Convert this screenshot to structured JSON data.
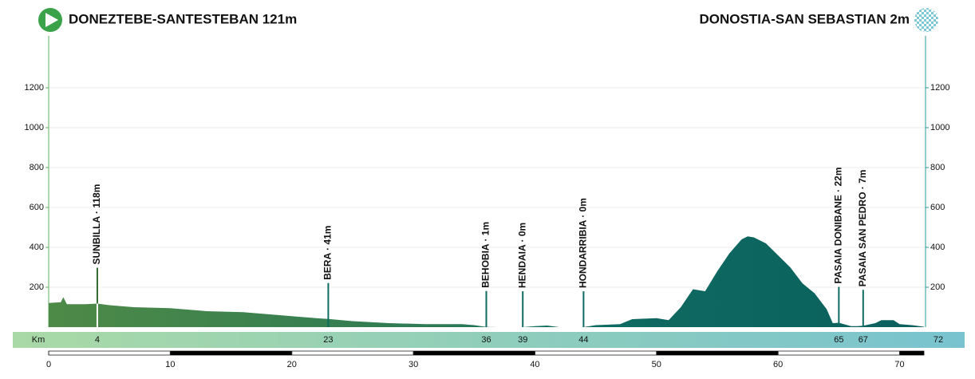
{
  "chart_data": {
    "type": "area",
    "start_title": "DONEZTEBE-SANTESTEBAN 121m",
    "finish_title": "DONOSTIA-SAN SEBASTIAN 2m",
    "x_unit_label": "Km",
    "x": [
      0,
      1,
      1.2,
      1.5,
      3,
      4,
      5,
      7,
      10,
      13,
      16,
      19,
      22,
      23,
      25,
      28,
      31,
      34,
      35,
      36,
      37,
      39,
      40,
      41,
      42,
      44,
      45,
      47,
      48,
      50,
      51,
      52,
      53,
      54,
      55,
      56,
      57,
      57.5,
      58,
      59,
      60,
      61,
      62,
      63,
      64,
      64.5,
      65,
      66,
      66.5,
      67,
      68,
      68.5,
      69.5,
      70,
      71,
      72
    ],
    "values": [
      121,
      125,
      150,
      115,
      115,
      118,
      110,
      100,
      95,
      80,
      75,
      60,
      45,
      41,
      30,
      20,
      15,
      15,
      10,
      1,
      0,
      0,
      5,
      8,
      0,
      0,
      10,
      15,
      40,
      45,
      35,
      100,
      190,
      180,
      280,
      370,
      440,
      455,
      450,
      420,
      360,
      300,
      220,
      170,
      90,
      20,
      22,
      5,
      5,
      7,
      20,
      35,
      35,
      15,
      10,
      2
    ],
    "waypoints": [
      {
        "label": "SUNBILLA · 118m",
        "km": 4
      },
      {
        "label": "BERA · 41m",
        "km": 23
      },
      {
        "label": "BEHOBIA · 1m",
        "km": 36
      },
      {
        "label": "HENDAIA · 0m",
        "km": 39
      },
      {
        "label": "HONDARRIBIA · 0m",
        "km": 44
      },
      {
        "label": "PASAIA DONIBANE · 22m",
        "km": 65
      },
      {
        "label": "PASAIA SAN PEDRO · 7m",
        "km": 67
      }
    ],
    "xlim": [
      0,
      72
    ],
    "xticks": [
      0,
      10,
      20,
      30,
      40,
      50,
      60,
      70
    ],
    "ylim": [
      0,
      1460
    ],
    "yticks": [
      200,
      400,
      600,
      800,
      1000,
      1200
    ],
    "grid": true
  }
}
